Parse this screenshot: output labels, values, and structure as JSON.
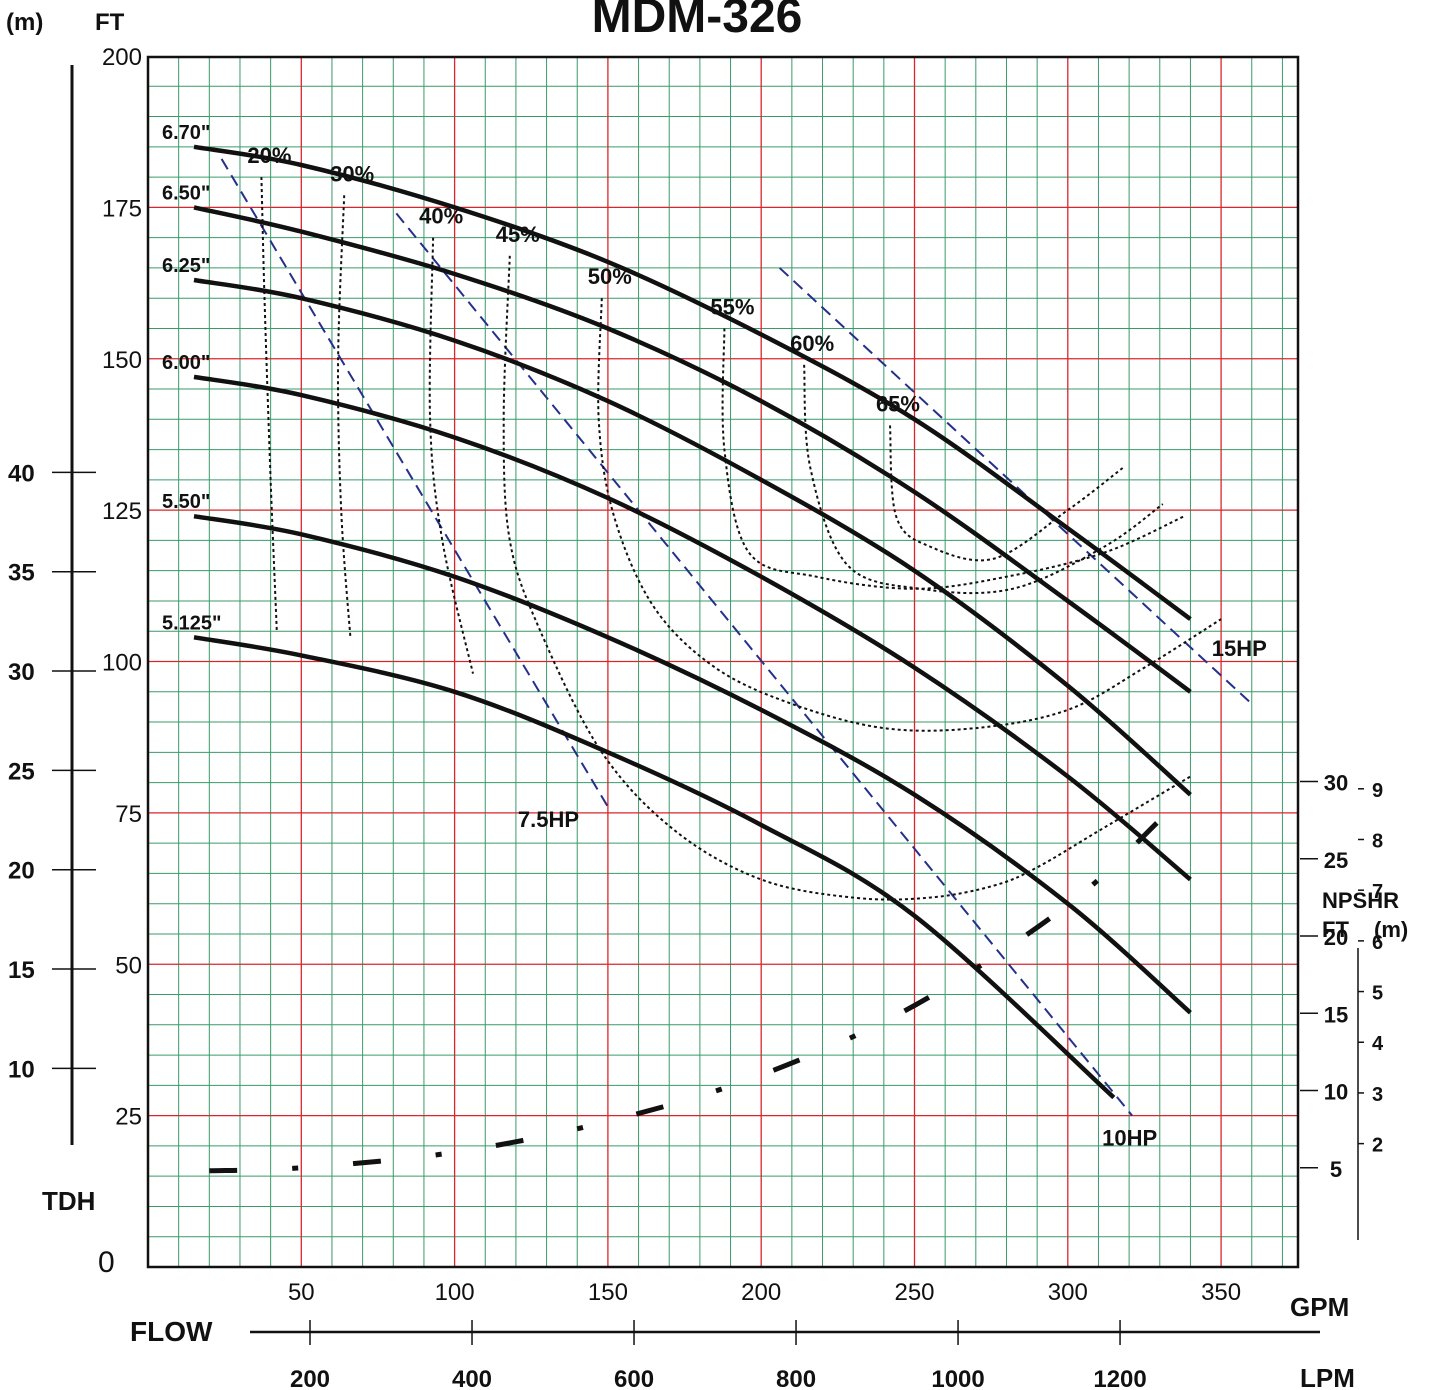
{
  "chart_data": {
    "type": "line",
    "title": "MDM-326",
    "y_label_left": "TDH",
    "y_unit_m": "(m)",
    "y_unit_ft": "FT",
    "zero_label": "0",
    "x_label_gpm": "GPM",
    "x_label_lpm": "LPM",
    "flow_label": "FLOW",
    "npshr_label": "NPSHR",
    "npshr_unit_ft": "FT",
    "npshr_unit_m": "(m)",
    "xlim": [
      0,
      375
    ],
    "ylim": [
      0,
      200
    ],
    "x_ticks": [
      "50",
      "100",
      "150",
      "200",
      "250",
      "300",
      "350"
    ],
    "y_ticks_ft": [
      "25",
      "50",
      "75",
      "100",
      "125",
      "150",
      "175",
      "200"
    ],
    "y_ticks_m": [
      "10",
      "15",
      "20",
      "25",
      "30",
      "35",
      "40"
    ],
    "lpm_ticks": [
      "200",
      "400",
      "600",
      "800",
      "1000",
      "1200"
    ],
    "npshr_ft_ticks": [
      "5",
      "10",
      "15",
      "20",
      "25",
      "30"
    ],
    "npshr_m_ticks": [
      "2",
      "3",
      "4",
      "5",
      "6",
      "7",
      "8",
      "9"
    ],
    "series": [
      {
        "name": "6.70\"",
        "x": [
          15,
          50,
          100,
          150,
          200,
          250,
          300,
          340
        ],
        "y": [
          185,
          182,
          175,
          166,
          154,
          140,
          122,
          107
        ]
      },
      {
        "name": "6.50\"",
        "x": [
          15,
          50,
          100,
          150,
          200,
          250,
          300,
          340
        ],
        "y": [
          175,
          171,
          164,
          155,
          143,
          128,
          110,
          95
        ]
      },
      {
        "name": "6.25\"",
        "x": [
          15,
          50,
          100,
          150,
          200,
          250,
          300,
          340
        ],
        "y": [
          163,
          160,
          153,
          143,
          130,
          115,
          96,
          78
        ]
      },
      {
        "name": "6.00\"",
        "x": [
          15,
          50,
          100,
          150,
          200,
          250,
          300,
          340
        ],
        "y": [
          147,
          144,
          137,
          127,
          114,
          99,
          81,
          64
        ]
      },
      {
        "name": "5.50\"",
        "x": [
          15,
          50,
          100,
          150,
          200,
          250,
          300,
          340
        ],
        "y": [
          124,
          121,
          114,
          104,
          92,
          78,
          60,
          42
        ]
      },
      {
        "name": "5.125\"",
        "x": [
          15,
          50,
          100,
          150,
          200,
          250,
          315
        ],
        "y": [
          104,
          101,
          95,
          85,
          73,
          58,
          28
        ]
      }
    ],
    "efficiency": [
      {
        "label": "20%",
        "x": [
          37,
          38,
          40,
          42
        ],
        "y": [
          180,
          160,
          130,
          105
        ]
      },
      {
        "label": "30%",
        "x": [
          64,
          62,
          63,
          66
        ],
        "y": [
          177,
          150,
          125,
          104
        ]
      },
      {
        "label": "40%",
        "x": [
          93,
          92,
          96,
          106
        ],
        "y": [
          170,
          140,
          120,
          98
        ]
      },
      {
        "label": "45%",
        "x": [
          118,
          116,
          118,
          128,
          148,
          172,
          200,
          230,
          255,
          276,
          290,
          310,
          340
        ],
        "y": [
          167,
          140,
          120,
          105,
          85,
          72,
          64,
          61,
          61,
          63,
          66,
          72,
          81
        ]
      },
      {
        "label": "50%",
        "x": [
          148,
          147,
          152,
          165,
          185,
          210,
          240,
          270,
          300,
          325,
          350
        ],
        "y": [
          160,
          140,
          124,
          109,
          99,
          93,
          89,
          89,
          92,
          99,
          107
        ]
      },
      {
        "label": "55%",
        "x": [
          188,
          188,
          196,
          218,
          250,
          280,
          312,
          338
        ],
        "y": [
          155,
          135,
          118,
          114,
          112,
          114,
          118,
          124
        ]
      },
      {
        "label": "60%",
        "x": [
          214,
          216,
          228,
          252,
          282,
          312,
          331
        ],
        "y": [
          149,
          132,
          116,
          112,
          112,
          119,
          126
        ]
      },
      {
        "label": "65%",
        "x": [
          242,
          244,
          255,
          276,
          300,
          318
        ],
        "y": [
          139,
          124,
          119,
          117,
          125,
          132
        ]
      }
    ],
    "hp_lines": [
      {
        "label": "7.5HP",
        "x": [
          24,
          150
        ],
        "y": [
          183,
          76
        ]
      },
      {
        "label": "10HP",
        "x": [
          81,
          321
        ],
        "y": [
          174,
          25
        ]
      },
      {
        "label": "15HP",
        "x": [
          206,
          360
        ],
        "y": [
          165,
          93
        ]
      }
    ],
    "npshr": {
      "x": [
        20,
        50,
        100,
        150,
        200,
        250,
        300,
        330
      ],
      "y_ft": [
        4.8,
        5,
        6,
        8,
        11,
        15.5,
        22,
        27.5
      ]
    }
  }
}
